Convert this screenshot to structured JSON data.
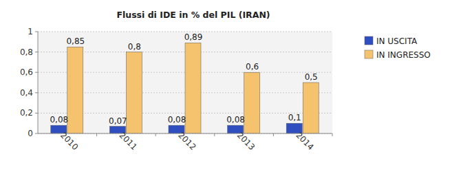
{
  "chart_data": {
    "type": "bar",
    "title": "Flussi di IDE in % del PIL (IRAN)",
    "categories": [
      "2010",
      "2011",
      "2012",
      "2013",
      "2014"
    ],
    "series": [
      {
        "name": "IN USCITA",
        "color": "#2f4fc0",
        "values": [
          0.08,
          0.07,
          0.08,
          0.08,
          0.1
        ],
        "value_labels": [
          "0,08",
          "0,07",
          "0,08",
          "0,08",
          "0,1"
        ]
      },
      {
        "name": "IN INGRESSO",
        "color": "#f5c36e",
        "values": [
          0.85,
          0.8,
          0.89,
          0.6,
          0.5
        ],
        "value_labels": [
          "0,85",
          "0,8",
          "0,89",
          "0,6",
          "0,5"
        ]
      }
    ],
    "ylim": [
      0,
      1
    ],
    "yticks": [
      0,
      {
        "value": 0.2,
        "label": "0,2"
      },
      {
        "value": 0.4,
        "label": "0,4"
      },
      {
        "value": 0.6,
        "label": "0,6"
      },
      {
        "value": 0.8,
        "label": "0,8"
      },
      1
    ],
    "grid": true,
    "legend": "top-right",
    "data_labels": true
  }
}
